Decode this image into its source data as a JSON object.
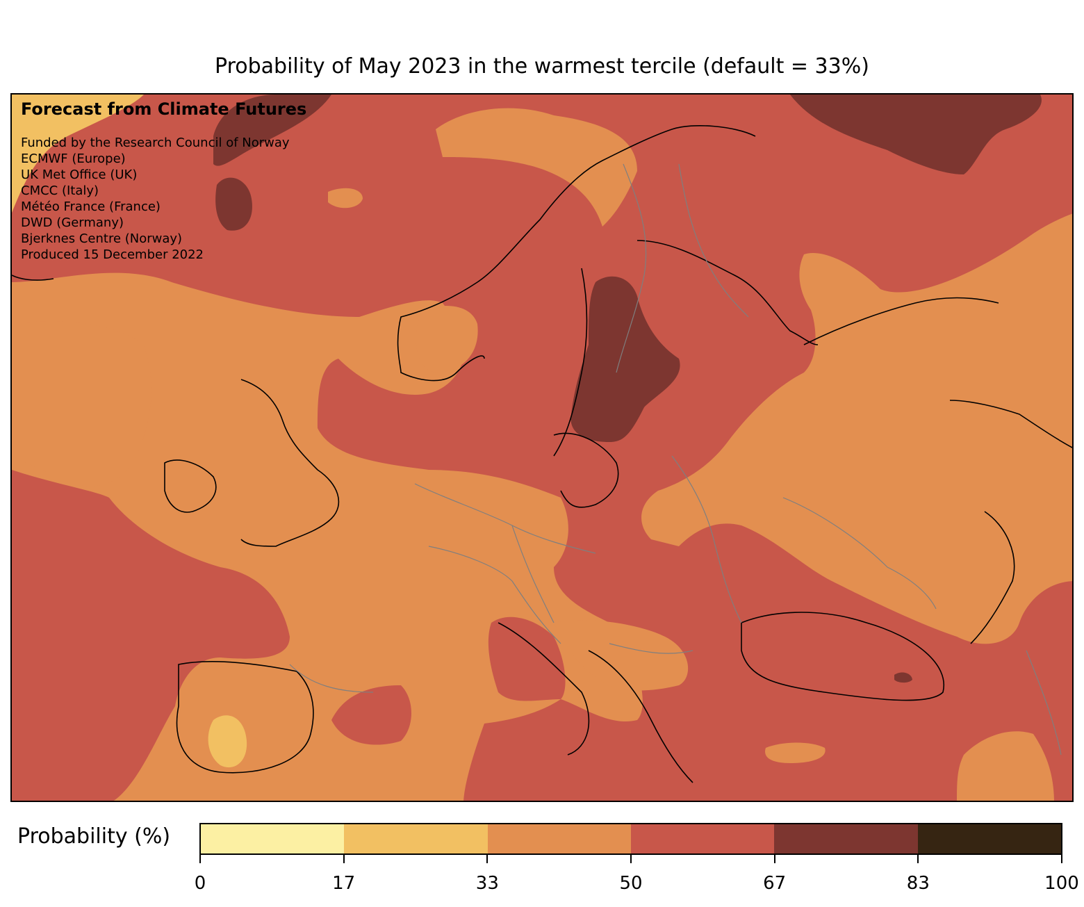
{
  "title": "Probability of May 2023 in the warmest tercile (default = 33%)",
  "credit_title": "Forecast from Climate Futures",
  "credits": [
    "Funded by the Research Council of Norway",
    "ECMWF (Europe)",
    "UK Met Office (UK)",
    "CMCC (Italy)",
    "Météo France (France)",
    "DWD (Germany)",
    "Bjerknes Centre (Norway)",
    "Produced 15 December 2022"
  ],
  "colorbar": {
    "label": "Probability (%)",
    "ticks": [
      "0",
      "17",
      "33",
      "50",
      "67",
      "83",
      "100"
    ],
    "colors": [
      "#fcf0a3",
      "#f2c062",
      "#e38f50",
      "#c8574a",
      "#7d3630",
      "#362512"
    ]
  }
}
